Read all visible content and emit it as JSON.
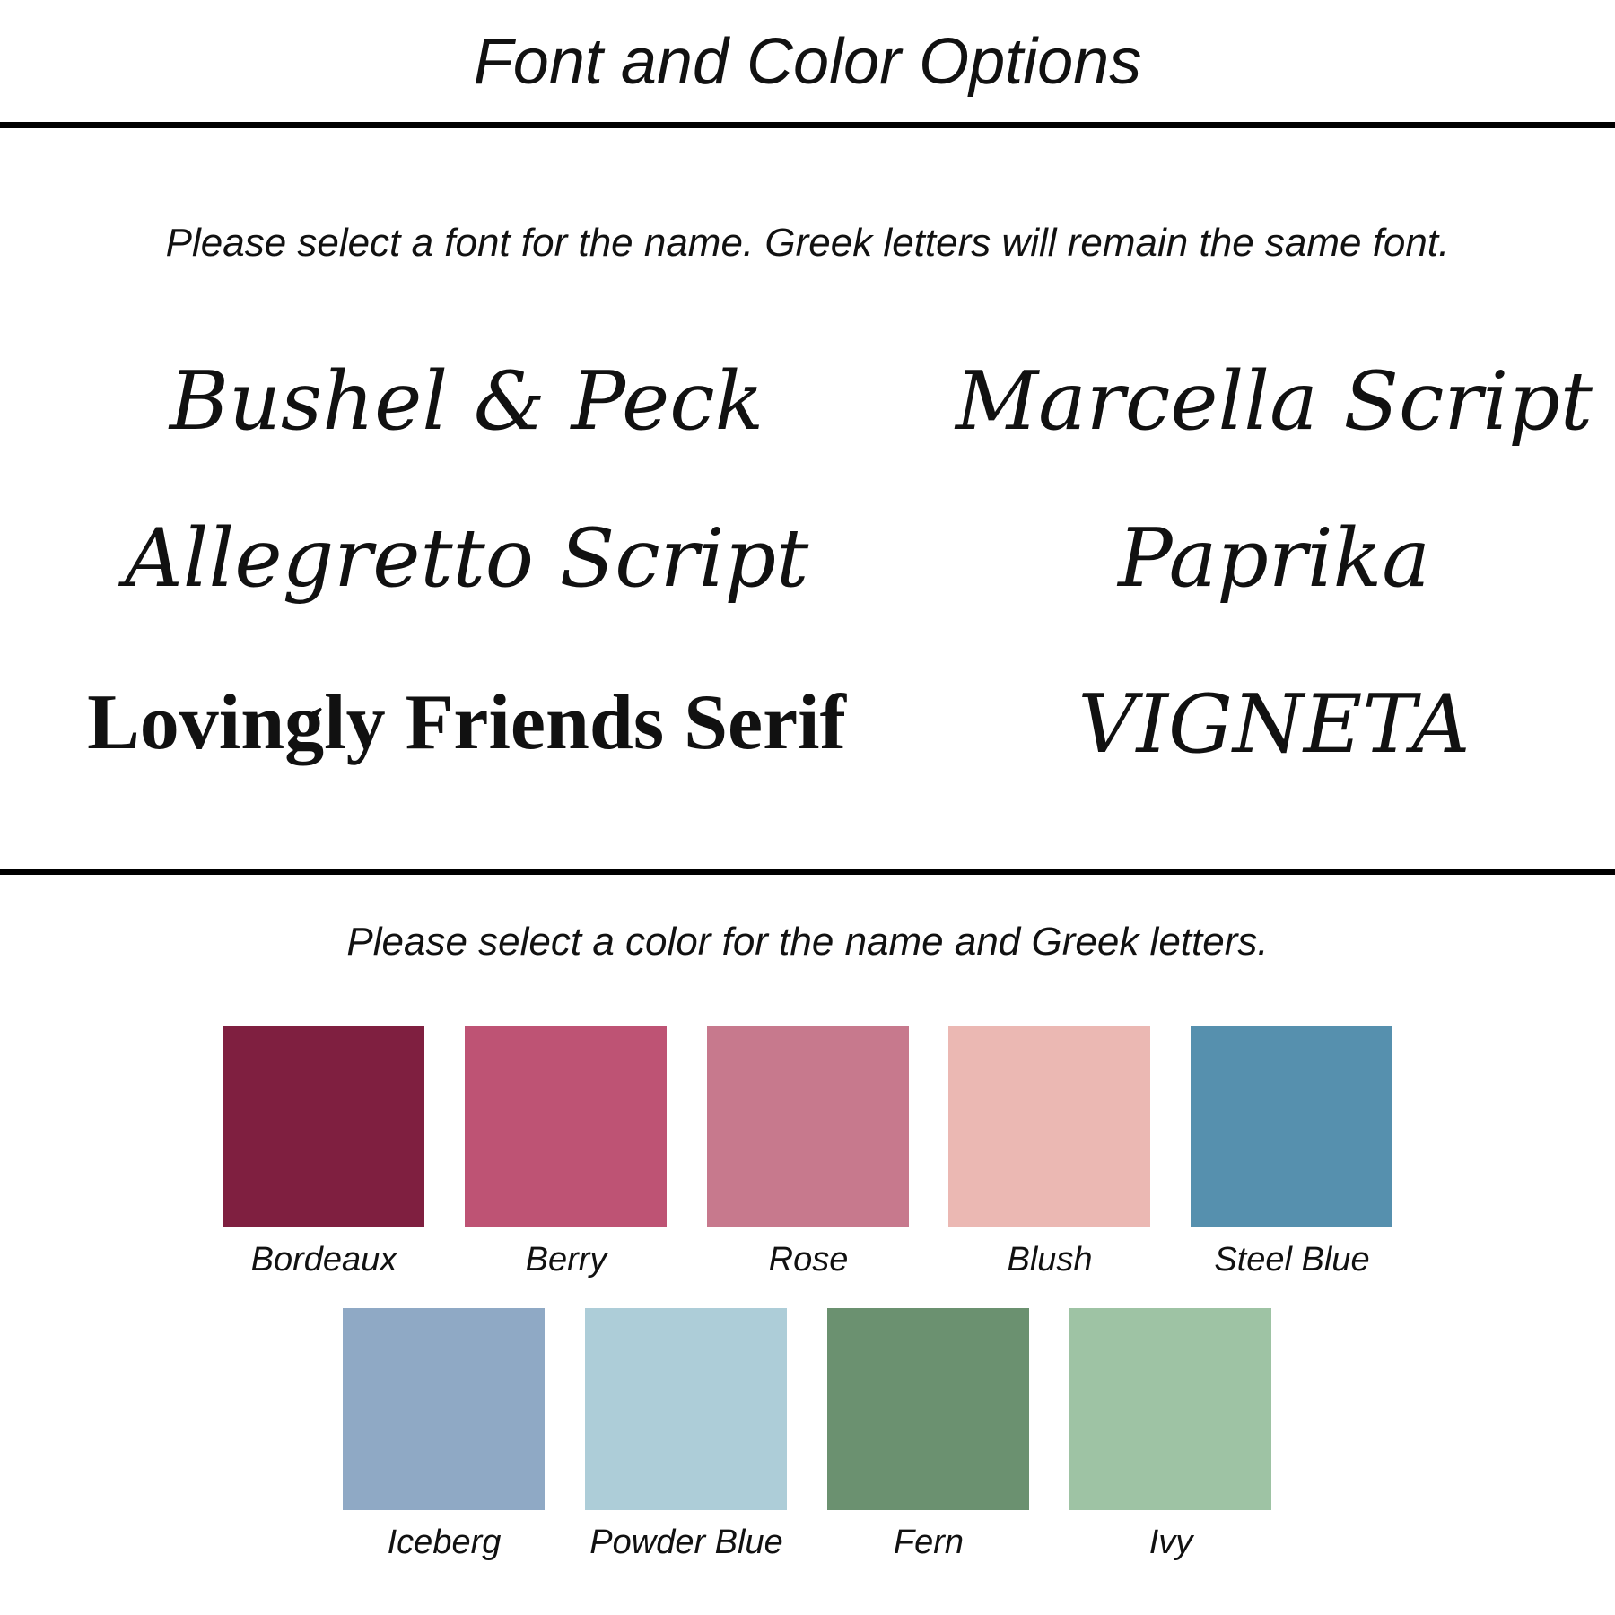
{
  "title": "Font and Color Options",
  "font_section": {
    "instruction": "Please select a font for the name.  Greek letters will remain the same font.",
    "fonts": [
      "Bushel & Peck",
      "Marcella Script",
      "Allegretto Script",
      "Paprika",
      "Lovingly Friends Serif",
      "VIGNETA"
    ]
  },
  "color_section": {
    "instruction": "Please select a color for the name and Greek letters.",
    "colors": [
      {
        "name": "Bordeaux",
        "hex": "#7f1f40"
      },
      {
        "name": "Berry",
        "hex": "#be5374"
      },
      {
        "name": "Rose",
        "hex": "#c7798d"
      },
      {
        "name": "Blush",
        "hex": "#ebb8b3"
      },
      {
        "name": "Steel Blue",
        "hex": "#5690ae"
      },
      {
        "name": "Iceberg",
        "hex": "#8fa9c5"
      },
      {
        "name": "Powder Blue",
        "hex": "#adcdd8"
      },
      {
        "name": "Fern",
        "hex": "#6b9170"
      },
      {
        "name": "Ivy",
        "hex": "#9ec3a4"
      }
    ]
  }
}
